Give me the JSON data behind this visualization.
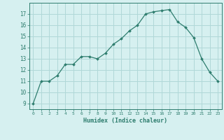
{
  "x": [
    0,
    1,
    2,
    3,
    4,
    5,
    6,
    7,
    8,
    9,
    10,
    11,
    12,
    13,
    14,
    15,
    16,
    17,
    18,
    19,
    20,
    21,
    22,
    23
  ],
  "y": [
    9,
    11,
    11,
    11.5,
    12.5,
    12.5,
    13.2,
    13.2,
    13,
    13.5,
    14.3,
    14.8,
    15.5,
    16,
    17,
    17.2,
    17.3,
    17.4,
    16.3,
    15.8,
    14.9,
    13,
    11.8,
    11
  ],
  "line_color": "#2e7d6e",
  "marker_color": "#2e7d6e",
  "bg_color": "#d6f0f0",
  "grid_color": "#b0d8d8",
  "xlabel": "Humidex (Indice chaleur)",
  "xlim": [
    -0.5,
    23.5
  ],
  "ylim": [
    8.5,
    18.0
  ],
  "yticks": [
    9,
    10,
    11,
    12,
    13,
    14,
    15,
    16,
    17
  ],
  "xtick_labels": [
    "0",
    "1",
    "2",
    "3",
    "4",
    "5",
    "6",
    "7",
    "8",
    "9",
    "10",
    "11",
    "12",
    "13",
    "14",
    "15",
    "16",
    "17",
    "18",
    "19",
    "20",
    "21",
    "22",
    "23"
  ]
}
